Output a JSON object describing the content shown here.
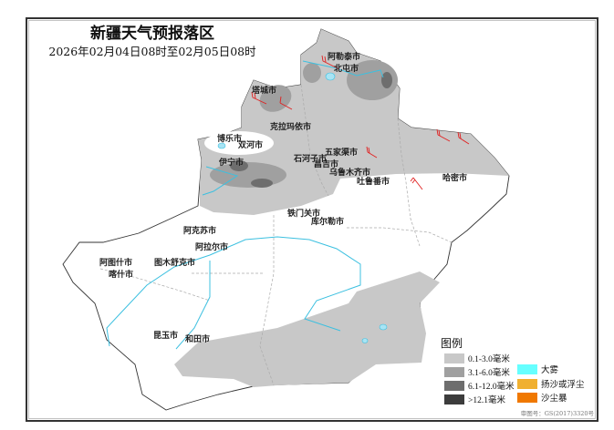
{
  "title": "新疆天气预报落区",
  "subtitle": "2026年02月04日08时至02月05日08时",
  "cities": [
    "阿勒泰市",
    "北屯市",
    "塔城市",
    "克拉玛依市",
    "博乐市",
    "双河市",
    "伊宁市",
    "石河子市",
    "昌吉市",
    "五家渠市",
    "乌鲁木齐市",
    "吐鲁番市",
    "哈密市",
    "铁门关市",
    "库尔勒市",
    "阿克苏市",
    "阿拉尔市",
    "图木舒克市",
    "阿图什市",
    "喀什市",
    "昆玉市",
    "和田市"
  ],
  "legend": {
    "title": "图例",
    "precip": [
      {
        "label": "0.1-3.0毫米",
        "color": "#c8c8c8"
      },
      {
        "label": "3.1-6.0毫米",
        "color": "#a0a0a0"
      },
      {
        "label": "6.1-12.0毫米",
        "color": "#6e6e6e"
      },
      {
        "label": ">12.1毫米",
        "color": "#3c3c3c"
      }
    ],
    "weather": [
      {
        "label": "大雾",
        "color": "#66ffff"
      },
      {
        "label": "扬沙或浮尘",
        "color": "#f0b030"
      },
      {
        "label": "沙尘暴",
        "color": "#f07800"
      }
    ]
  },
  "review_number": "审图号：GS(2017)3320号",
  "colors": {
    "river": "#3cc0e0",
    "wind_barb": "#e02020",
    "land": "#ffffff"
  }
}
